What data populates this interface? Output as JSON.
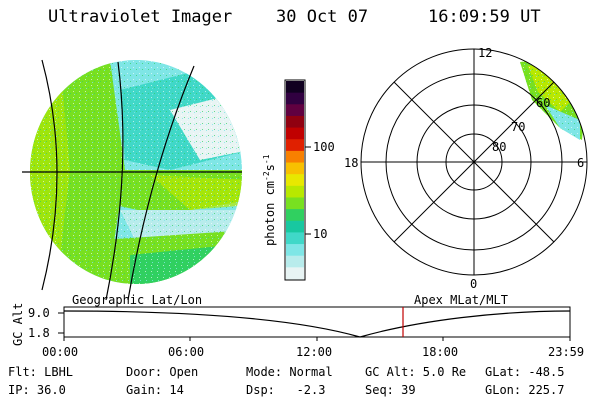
{
  "header": {
    "instrument": "Ultraviolet Imager",
    "date": "30 Oct 07",
    "time": "16:09:59 UT"
  },
  "colorbar": {
    "unit_label": "photon cm",
    "unit_sup1": "-2",
    "unit_mid": "s",
    "unit_sup2": "-1",
    "ticks": [
      "100",
      "10"
    ],
    "colors": [
      "#e8f4f4",
      "#b8ecec",
      "#7fe6e6",
      "#40d8c8",
      "#18c8a0",
      "#30d060",
      "#78e020",
      "#b8e800",
      "#e8e800",
      "#f8c000",
      "#f88000",
      "#e02000",
      "#c00000",
      "#900010",
      "#600040",
      "#300040",
      "#100020"
    ]
  },
  "polar": {
    "mlt_labels": [
      "12",
      "18",
      "6",
      "0"
    ],
    "lat_labels": [
      "60",
      "70",
      "80"
    ]
  },
  "timeline": {
    "left_label": "Geographic Lat/Lon",
    "right_label": "Apex MLat/MLT",
    "axis_label": "GC Alt",
    "y_ticks": [
      "9.0",
      "1.8"
    ],
    "x_ticks": [
      "00:00",
      "06:00",
      "12:00",
      "18:00",
      "23:59"
    ],
    "marker_time": "16:09:59",
    "marker_color": "#c00000"
  },
  "footer": {
    "row1": [
      {
        "label": "Flt: LBHL"
      },
      {
        "label": "Door: Open"
      },
      {
        "label": "Mode: Normal"
      },
      {
        "label": "GC Alt: 5.0 Re"
      },
      {
        "label": "GLat: -48.5"
      }
    ],
    "row2": [
      {
        "label": "IP: 36.0"
      },
      {
        "label": "Gain: 14"
      },
      {
        "label": "Dsp:   -2.3"
      },
      {
        "label": "Seq: 39"
      },
      {
        "label": "GLon: 225.7"
      }
    ]
  }
}
